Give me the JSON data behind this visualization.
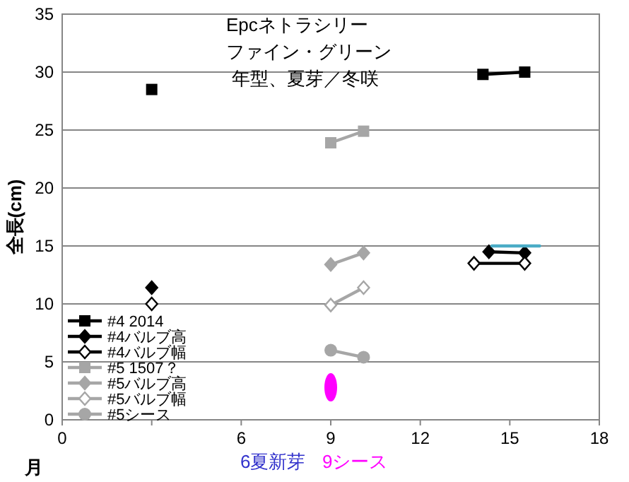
{
  "chart_data": {
    "type": "line",
    "annotations": [
      "Epcネトラシリー",
      "ファイン・グリーン",
      " 年型、夏芽／冬咲",
      "6夏新芽",
      "9シース"
    ],
    "xlabel": "月",
    "ylabel": "全長(cm)",
    "xlim": [
      0,
      18
    ],
    "xticks": [
      0,
      {
        "value": 3,
        "label": null
      },
      6,
      9,
      12,
      15,
      18
    ],
    "ylim": [
      0,
      35
    ],
    "yticks": [
      0,
      5,
      10,
      15,
      20,
      25,
      30,
      35
    ],
    "grid": "y",
    "legend": "bottom left",
    "series": [
      {
        "name": "#4 2014",
        "color": "#000000",
        "marker": "square",
        "x": [
          3
        ],
        "values": [
          28.5
        ]
      },
      {
        "name": "#4バルブ高",
        "color": "#000000",
        "marker": "diamond",
        "x": [
          3
        ],
        "values": [
          11.4
        ]
      },
      {
        "name": "#4バルブ幅",
        "color": "#000000",
        "marker": "diamond-open",
        "x": [
          3
        ],
        "values": [
          10
        ]
      },
      {
        "name": "#5 1507？",
        "color": "#a6a6a6",
        "marker": "square",
        "x": [
          9,
          10.1
        ],
        "values": [
          23.9,
          24.9
        ]
      },
      {
        "name": "#5バルブ高",
        "color": "#a6a6a6",
        "marker": "diamond",
        "x": [
          9,
          10.1
        ],
        "values": [
          13.4,
          14.4
        ]
      },
      {
        "name": "#5バルブ幅",
        "color": "#a6a6a6",
        "marker": "diamond-open",
        "x": [
          9,
          10.1
        ],
        "values": [
          9.9,
          11.4
        ]
      },
      {
        "name": "#5シース",
        "color": "#a6a6a6",
        "marker": "circle",
        "x": [
          9,
          10.1
        ],
        "values": [
          6,
          5.4
        ]
      },
      {
        "color": "#000000",
        "marker": "square",
        "x": [
          14.1,
          15.5
        ],
        "values": [
          29.8,
          30
        ]
      },
      {
        "color": "#000000",
        "marker": "diamond",
        "x": [
          14.3,
          15.5
        ],
        "values": [
          14.5,
          14.4
        ]
      },
      {
        "color": "#000000",
        "marker": "diamond-open",
        "x": [
          13.8,
          15.5
        ],
        "values": [
          13.5,
          13.5
        ]
      },
      {
        "color": "#4bacc6",
        "marker": "none",
        "x": [
          14.4,
          16
        ],
        "values": [
          15,
          15
        ]
      },
      {
        "type": "scatter",
        "color": "#ff00ff",
        "marker": "circle",
        "x": [
          9
        ],
        "values": [
          2.8
        ]
      }
    ]
  }
}
